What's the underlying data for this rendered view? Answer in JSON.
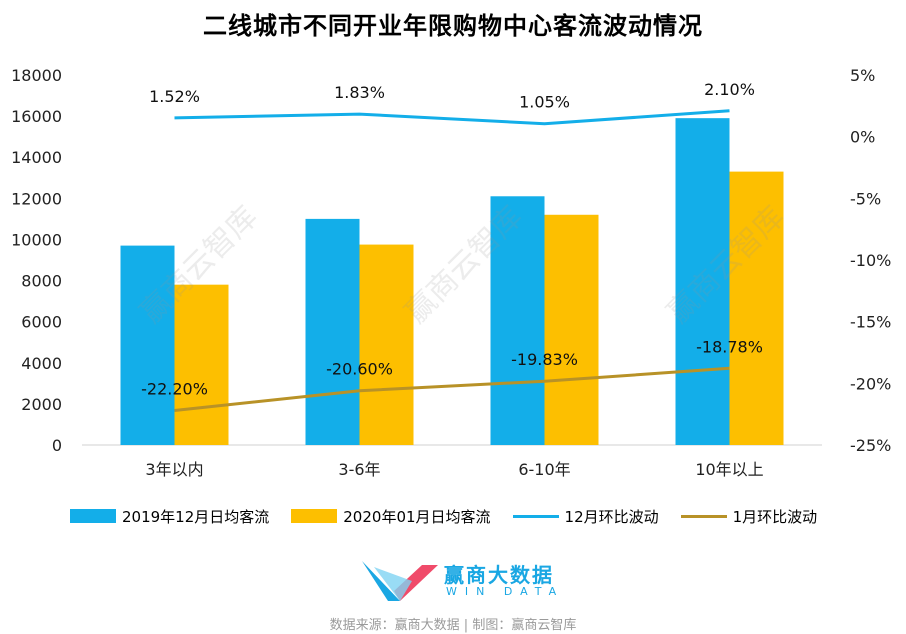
{
  "title": "二线城市不同开业年限购物中心客流波动情况",
  "chart_data": {
    "type": "bar",
    "categories": [
      "3年以内",
      "3-6年",
      "6-10年",
      "10年以上"
    ],
    "series": [
      {
        "name": "2019年12月日均客流",
        "type": "bar",
        "axis": "left",
        "color": "#13aee9",
        "values": [
          9700,
          11000,
          12100,
          15900
        ]
      },
      {
        "name": "2020年01月日均客流",
        "type": "bar",
        "axis": "left",
        "color": "#fdbf00",
        "values": [
          7800,
          9750,
          11200,
          13300
        ]
      },
      {
        "name": "12月环比波动",
        "type": "line",
        "axis": "right",
        "color": "#13aee9",
        "values": [
          1.52,
          1.83,
          1.05,
          2.1
        ],
        "labels": [
          "1.52%",
          "1.83%",
          "1.05%",
          "2.10%"
        ]
      },
      {
        "name": "1月环比波动",
        "type": "line",
        "axis": "right",
        "color": "#b89227",
        "values": [
          -22.2,
          -20.6,
          -19.83,
          -18.78
        ],
        "labels": [
          "-22.20%",
          "-20.60%",
          "-19.83%",
          "-18.78%"
        ]
      }
    ],
    "y_left": {
      "min": 0,
      "max": 18000,
      "ticks": [
        "0",
        "2000",
        "4000",
        "6000",
        "8000",
        "10000",
        "12000",
        "14000",
        "16000",
        "18000"
      ]
    },
    "y_right": {
      "min": -25,
      "max": 5,
      "ticks": [
        "-25%",
        "-20%",
        "-15%",
        "-10%",
        "-5%",
        "0%",
        "5%"
      ]
    },
    "grid": false,
    "legend": "bottom"
  },
  "watermark": "赢商云智库",
  "brand": {
    "name": "赢商大数据",
    "sub": "WIN DATA"
  },
  "source": "数据来源：赢商大数据 | 制图：赢商云智库",
  "icons": {
    "brand_logo": "win-data-logo-icon"
  }
}
